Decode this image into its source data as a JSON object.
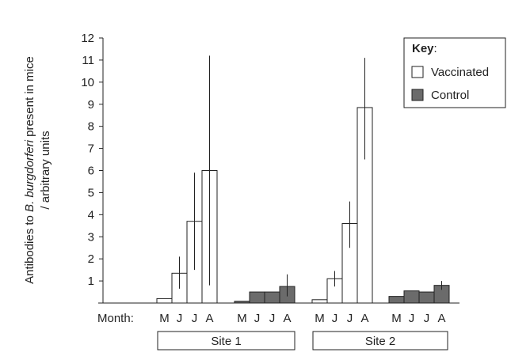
{
  "chart_data": {
    "type": "bar",
    "title": "",
    "ylabel_parts": [
      "Antibodies to ",
      "B. burgdorferi",
      " present in mice"
    ],
    "ylabel_line2": "/ arbitrary units",
    "xlabel_prefix": "Month:",
    "ylim": [
      0,
      12
    ],
    "yticks": [
      1,
      2,
      3,
      4,
      5,
      6,
      7,
      8,
      9,
      10,
      11,
      12
    ],
    "grid": false,
    "legend": {
      "title": "Key",
      "placement": "top-right",
      "items": [
        {
          "label": "Vaccinated",
          "color": "#ffffff"
        },
        {
          "label": "Control",
          "color": "#6b6b6b"
        }
      ]
    },
    "sites": [
      {
        "name": "Site 1",
        "groups": [
          {
            "series": "Vaccinated",
            "months": [
              "M",
              "J",
              "J",
              "A"
            ],
            "values": [
              0.2,
              1.35,
              3.7,
              6.0
            ],
            "err_low": [
              0.2,
              0.65,
              1.5,
              0.8
            ],
            "err_high": [
              0.2,
              2.1,
              5.9,
              11.2
            ]
          },
          {
            "series": "Control",
            "months": [
              "M",
              "J",
              "J",
              "A"
            ],
            "values": [
              0.08,
              0.5,
              0.5,
              0.75
            ],
            "err_low": [
              0.08,
              0.5,
              0.5,
              0.3
            ],
            "err_high": [
              0.08,
              0.5,
              0.5,
              1.3
            ]
          }
        ]
      },
      {
        "name": "Site 2",
        "groups": [
          {
            "series": "Vaccinated",
            "months": [
              "M",
              "J",
              "J",
              "A"
            ],
            "values": [
              0.15,
              1.1,
              3.6,
              8.85
            ],
            "err_low": [
              0.15,
              0.75,
              2.5,
              6.5
            ],
            "err_high": [
              0.15,
              1.45,
              4.6,
              11.1
            ]
          },
          {
            "series": "Control",
            "months": [
              "M",
              "J",
              "J",
              "A"
            ],
            "values": [
              0.3,
              0.55,
              0.5,
              0.8
            ],
            "err_low": [
              0.3,
              0.55,
              0.5,
              0.6
            ],
            "err_high": [
              0.3,
              0.55,
              0.5,
              1.0
            ]
          }
        ]
      }
    ]
  }
}
